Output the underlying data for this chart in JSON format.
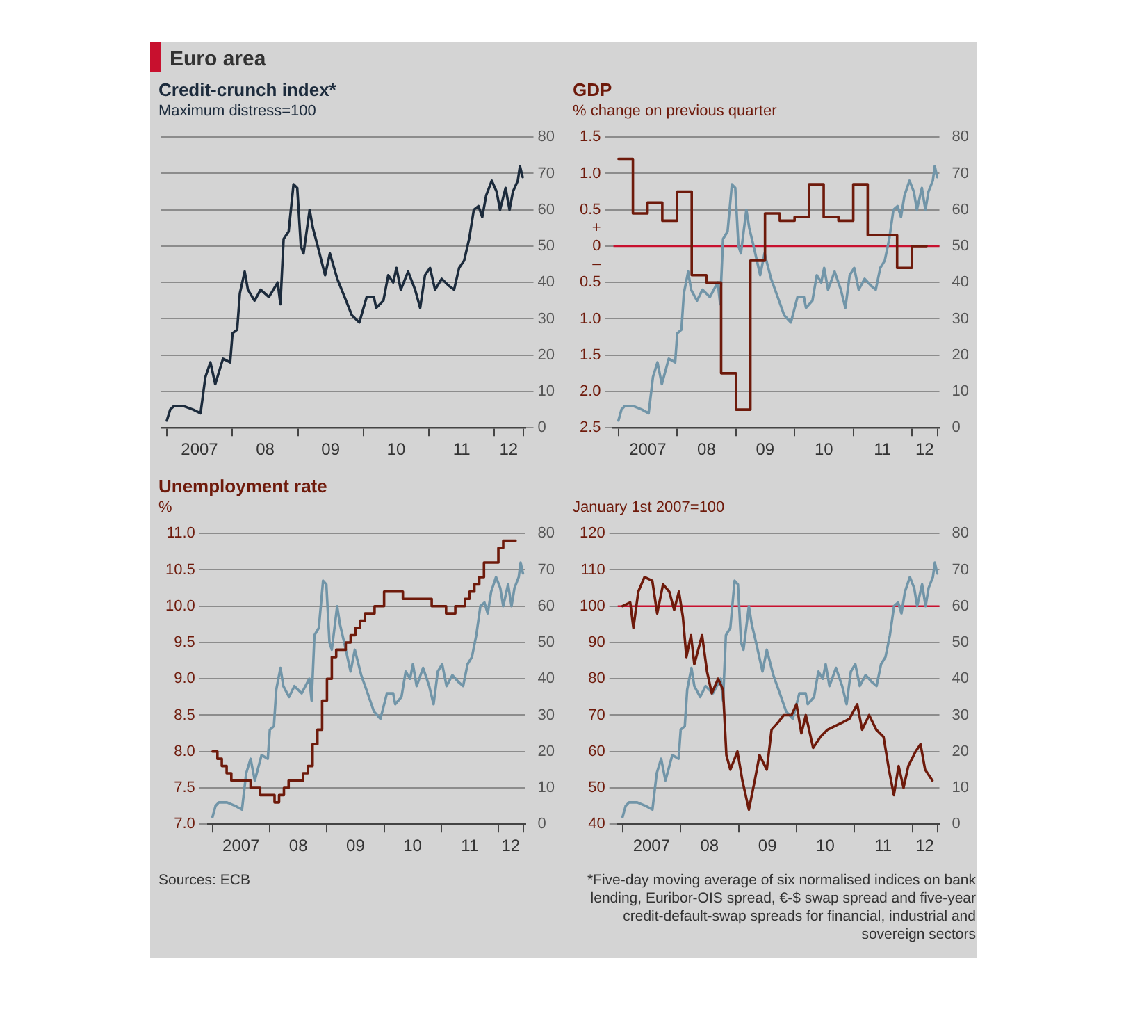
{
  "chart_data": [
    {
      "type": "line",
      "title": "Credit-crunch index*",
      "subtitle": "Maximum distress=100",
      "annotations": [
        "Euro area"
      ],
      "xlim": [
        "2006-12-01",
        "2012-06-20"
      ],
      "xticks": [
        {
          "value": "2007-01-01",
          "label": null
        },
        {
          "value": "2007-07-02",
          "label": "2007"
        },
        {
          "value": "2008-01-01",
          "label": null
        },
        {
          "value": "2008-07-02",
          "label": "08"
        },
        {
          "value": "2009-01-01",
          "label": null
        },
        {
          "value": "2009-07-02",
          "label": "09"
        },
        {
          "value": "2010-01-01",
          "label": null
        },
        {
          "value": "2010-07-02",
          "label": "10"
        },
        {
          "value": "2011-01-01",
          "label": null
        },
        {
          "value": "2011-07-02",
          "label": "11"
        },
        {
          "value": "2012-01-01",
          "label": null
        },
        {
          "value": "2012-03-20",
          "label": "12"
        },
        {
          "value": "2012-06-10",
          "label": null
        }
      ],
      "y2lim": [
        0,
        80
      ],
      "y2ticks": [
        0,
        10,
        20,
        30,
        40,
        50,
        60,
        70,
        80
      ],
      "grid": "y",
      "series": [
        {
          "color": "#1c2b3c",
          "axis": "y2",
          "x": [
            "2007-01-01",
            "2007-01-20",
            "2007-02-10",
            "2007-04-03",
            "2007-05-28",
            "2007-07-08",
            "2007-08-04",
            "2007-09-01",
            "2007-09-28",
            "2007-11-10",
            "2007-12-20",
            "2008-01-02",
            "2008-01-28",
            "2008-02-12",
            "2008-03-10",
            "2008-03-28",
            "2008-05-04",
            "2008-06-07",
            "2008-07-23",
            "2008-09-10",
            "2008-09-25",
            "2008-10-13",
            "2008-11-10",
            "2008-12-07",
            "2008-12-28",
            "2009-01-17",
            "2009-02-01",
            "2009-03-07",
            "2009-03-25",
            "2009-04-21",
            "2009-06-01",
            "2009-06-28",
            "2009-08-08",
            "2009-09-18",
            "2009-10-28",
            "2009-12-09",
            "2010-01-19",
            "2010-02-28",
            "2010-03-13",
            "2010-04-22",
            "2010-05-19",
            "2010-06-16",
            "2010-07-04",
            "2010-07-28",
            "2010-09-07",
            "2010-10-16",
            "2010-11-13",
            "2010-12-10",
            "2011-01-07",
            "2011-02-04",
            "2011-03-13",
            "2011-04-24",
            "2011-05-21",
            "2011-06-18",
            "2011-07-16",
            "2011-08-13",
            "2011-09-08",
            "2011-10-04",
            "2011-10-25",
            "2011-11-16",
            "2011-12-17",
            "2012-01-13",
            "2012-02-01",
            "2012-03-03",
            "2012-03-25",
            "2012-04-13",
            "2012-05-10",
            "2012-05-22",
            "2012-06-06"
          ],
          "values": [
            2,
            5,
            6,
            6,
            5,
            4,
            14,
            18,
            12,
            19,
            18,
            26,
            27,
            37,
            43,
            38,
            35,
            38,
            36,
            40,
            34,
            52,
            54,
            67,
            66,
            50,
            48,
            60,
            55,
            50,
            42,
            48,
            41,
            36,
            31,
            29,
            36,
            36,
            33,
            35,
            42,
            40,
            44,
            38,
            43,
            38,
            33,
            42,
            44,
            38,
            41,
            39,
            38,
            44,
            46,
            52,
            60,
            61,
            58,
            64,
            68,
            65,
            60,
            66,
            60,
            65,
            68,
            72,
            69
          ]
        }
      ]
    },
    {
      "type": "line",
      "title": "GDP",
      "subtitle": "% change on previous quarter",
      "xlim": [
        "2006-12-01",
        "2012-06-20"
      ],
      "xticks": [
        {
          "value": "2007-01-01",
          "label": null
        },
        {
          "value": "2007-07-02",
          "label": "2007"
        },
        {
          "value": "2008-01-01",
          "label": null
        },
        {
          "value": "2008-07-02",
          "label": "08"
        },
        {
          "value": "2009-01-01",
          "label": null
        },
        {
          "value": "2009-07-02",
          "label": "09"
        },
        {
          "value": "2010-01-01",
          "label": null
        },
        {
          "value": "2010-07-02",
          "label": "10"
        },
        {
          "value": "2011-01-01",
          "label": null
        },
        {
          "value": "2011-07-02",
          "label": "11"
        },
        {
          "value": "2012-01-01",
          "label": null
        },
        {
          "value": "2012-03-20",
          "label": "12"
        },
        {
          "value": "2012-06-10",
          "label": null
        }
      ],
      "ylim": [
        -2.5,
        1.5
      ],
      "yticks": [
        1.5,
        {
          "value": 1,
          "label": "1.0"
        },
        0.5,
        {
          "value": 0.25,
          "label": "+"
        },
        0,
        {
          "value": -0.25,
          "label": "–"
        },
        {
          "value": -0.5,
          "label": "0.5"
        },
        {
          "value": -1,
          "label": "1.0"
        },
        {
          "value": -1.5,
          "label": "1.5"
        },
        {
          "value": -2,
          "label": "2.0"
        },
        {
          "value": -2.5,
          "label": "2.5"
        }
      ],
      "y2lim": [
        0,
        80
      ],
      "y2ticks": [
        0,
        10,
        20,
        30,
        40,
        50,
        60,
        70,
        80
      ],
      "grid": "y",
      "ref_lines": [
        {
          "axis": "y",
          "value": 0,
          "color": "#c8102e"
        }
      ],
      "series": [
        {
          "type": "step",
          "color": "#6e1a0b",
          "x": [
            "2007-01-01",
            "2007-04-01",
            "2007-07-01",
            "2007-10-01",
            "2008-01-01",
            "2008-04-01",
            "2008-07-01",
            "2008-10-01",
            "2009-01-01",
            "2009-04-01",
            "2009-07-01",
            "2009-10-01",
            "2010-01-01",
            "2010-04-01",
            "2010-07-01",
            "2010-10-01",
            "2011-01-01",
            "2011-04-01",
            "2011-07-01",
            "2011-10-01",
            "2012-01-01",
            "2012-04-01"
          ],
          "values": [
            1.2,
            0.45,
            0.6,
            0.35,
            0.75,
            -0.4,
            -0.5,
            -1.75,
            -2.25,
            -0.2,
            0.45,
            0.35,
            0.4,
            0.85,
            0.4,
            0.35,
            0.85,
            0.15,
            0.15,
            -0.3,
            0,
            0
          ]
        },
        {
          "color": "#7195a8",
          "axis": "y2",
          "x": [
            "2007-01-01",
            "2007-01-20",
            "2007-02-10",
            "2007-04-03",
            "2007-05-28",
            "2007-07-08",
            "2007-08-04",
            "2007-09-01",
            "2007-09-28",
            "2007-11-10",
            "2007-12-20",
            "2008-01-02",
            "2008-01-28",
            "2008-02-12",
            "2008-03-10",
            "2008-03-28",
            "2008-05-04",
            "2008-06-07",
            "2008-07-23",
            "2008-09-10",
            "2008-09-25",
            "2008-10-13",
            "2008-11-10",
            "2008-12-07",
            "2008-12-28",
            "2009-01-17",
            "2009-02-01",
            "2009-03-07",
            "2009-03-25",
            "2009-04-21",
            "2009-06-01",
            "2009-06-28",
            "2009-08-08",
            "2009-09-18",
            "2009-10-28",
            "2009-12-09",
            "2010-01-19",
            "2010-02-28",
            "2010-03-13",
            "2010-04-22",
            "2010-05-19",
            "2010-06-16",
            "2010-07-04",
            "2010-07-28",
            "2010-09-07",
            "2010-10-16",
            "2010-11-13",
            "2010-12-10",
            "2011-01-07",
            "2011-02-04",
            "2011-03-13",
            "2011-04-24",
            "2011-05-21",
            "2011-06-18",
            "2011-07-16",
            "2011-08-13",
            "2011-09-08",
            "2011-10-04",
            "2011-10-25",
            "2011-11-16",
            "2011-12-17",
            "2012-01-13",
            "2012-02-01",
            "2012-03-03",
            "2012-03-25",
            "2012-04-13",
            "2012-05-10",
            "2012-05-22",
            "2012-06-06"
          ],
          "values": [
            2,
            5,
            6,
            6,
            5,
            4,
            14,
            18,
            12,
            19,
            18,
            26,
            27,
            37,
            43,
            38,
            35,
            38,
            36,
            40,
            34,
            52,
            54,
            67,
            66,
            50,
            48,
            60,
            55,
            50,
            42,
            48,
            41,
            36,
            31,
            29,
            36,
            36,
            33,
            35,
            42,
            40,
            44,
            38,
            43,
            38,
            33,
            42,
            44,
            38,
            41,
            39,
            38,
            44,
            46,
            52,
            60,
            61,
            58,
            64,
            68,
            65,
            60,
            66,
            60,
            65,
            68,
            72,
            69
          ]
        }
      ]
    },
    {
      "type": "line",
      "title": "Unemployment rate",
      "subtitle": "%",
      "annotations": [
        "Sources: ECB"
      ],
      "xlim": [
        "2006-12-01",
        "2012-06-20"
      ],
      "xticks": [
        {
          "value": "2007-01-01",
          "label": null
        },
        {
          "value": "2007-07-02",
          "label": "2007"
        },
        {
          "value": "2008-01-01",
          "label": null
        },
        {
          "value": "2008-07-02",
          "label": "08"
        },
        {
          "value": "2009-01-01",
          "label": null
        },
        {
          "value": "2009-07-02",
          "label": "09"
        },
        {
          "value": "2010-01-01",
          "label": null
        },
        {
          "value": "2010-07-02",
          "label": "10"
        },
        {
          "value": "2011-01-01",
          "label": null
        },
        {
          "value": "2011-07-02",
          "label": "11"
        },
        {
          "value": "2012-01-01",
          "label": null
        },
        {
          "value": "2012-03-20",
          "label": "12"
        },
        {
          "value": "2012-06-10",
          "label": null
        }
      ],
      "ylim": [
        7,
        11
      ],
      "yticks": [
        {
          "value": 7,
          "label": "7.0"
        },
        7.5,
        {
          "value": 8,
          "label": "8.0"
        },
        8.5,
        {
          "value": 9,
          "label": "9.0"
        },
        9.5,
        {
          "value": 10,
          "label": "10.0"
        },
        10.5,
        {
          "value": 11,
          "label": "11.0"
        }
      ],
      "y2lim": [
        0,
        80
      ],
      "y2ticks": [
        0,
        10,
        20,
        30,
        40,
        50,
        60,
        70,
        80
      ],
      "grid": "y",
      "series": [
        {
          "type": "step",
          "color": "#6e1a0b",
          "x": [
            "2007-01-01",
            "2007-02-01",
            "2007-03-01",
            "2007-04-01",
            "2007-05-01",
            "2007-09-01",
            "2007-11-01",
            "2008-02-01",
            "2008-03-01",
            "2008-04-01",
            "2008-05-01",
            "2008-08-01",
            "2008-09-01",
            "2008-10-01",
            "2008-11-01",
            "2008-12-01",
            "2009-01-01",
            "2009-02-01",
            "2009-03-01",
            "2009-05-01",
            "2009-06-01",
            "2009-07-01",
            "2009-08-01",
            "2009-09-01",
            "2009-11-01",
            "2010-01-01",
            "2010-05-01",
            "2010-11-01",
            "2011-02-01",
            "2011-04-01",
            "2011-06-01",
            "2011-07-01",
            "2011-08-01",
            "2011-09-01",
            "2011-10-01",
            "2012-01-01",
            "2012-02-01",
            "2012-04-20"
          ],
          "values": [
            8.0,
            7.9,
            7.8,
            7.7,
            7.6,
            7.5,
            7.4,
            7.3,
            7.4,
            7.5,
            7.6,
            7.7,
            7.8,
            8.1,
            8.3,
            8.7,
            9.0,
            9.3,
            9.4,
            9.5,
            9.6,
            9.7,
            9.8,
            9.9,
            10.0,
            10.2,
            10.1,
            10.0,
            9.9,
            10.0,
            10.1,
            10.2,
            10.3,
            10.4,
            10.6,
            10.8,
            10.9,
            10.9
          ]
        },
        {
          "color": "#7195a8",
          "axis": "y2",
          "x": [
            "2007-01-01",
            "2007-01-20",
            "2007-02-10",
            "2007-04-03",
            "2007-05-28",
            "2007-07-08",
            "2007-08-04",
            "2007-09-01",
            "2007-09-28",
            "2007-11-10",
            "2007-12-20",
            "2008-01-02",
            "2008-01-28",
            "2008-02-12",
            "2008-03-10",
            "2008-03-28",
            "2008-05-04",
            "2008-06-07",
            "2008-07-23",
            "2008-09-10",
            "2008-09-25",
            "2008-10-13",
            "2008-11-10",
            "2008-12-07",
            "2008-12-28",
            "2009-01-17",
            "2009-02-01",
            "2009-03-07",
            "2009-03-25",
            "2009-04-21",
            "2009-06-01",
            "2009-06-28",
            "2009-08-08",
            "2009-09-18",
            "2009-10-28",
            "2009-12-09",
            "2010-01-19",
            "2010-02-28",
            "2010-03-13",
            "2010-04-22",
            "2010-05-19",
            "2010-06-16",
            "2010-07-04",
            "2010-07-28",
            "2010-09-07",
            "2010-10-16",
            "2010-11-13",
            "2010-12-10",
            "2011-01-07",
            "2011-02-04",
            "2011-03-13",
            "2011-04-24",
            "2011-05-21",
            "2011-06-18",
            "2011-07-16",
            "2011-08-13",
            "2011-09-08",
            "2011-10-04",
            "2011-10-25",
            "2011-11-16",
            "2011-12-17",
            "2012-01-13",
            "2012-02-01",
            "2012-03-03",
            "2012-03-25",
            "2012-04-13",
            "2012-05-10",
            "2012-05-22",
            "2012-06-06"
          ],
          "values": [
            2,
            5,
            6,
            6,
            5,
            4,
            14,
            18,
            12,
            19,
            18,
            26,
            27,
            37,
            43,
            38,
            35,
            38,
            36,
            40,
            34,
            52,
            54,
            67,
            66,
            50,
            48,
            60,
            55,
            50,
            42,
            48,
            41,
            36,
            31,
            29,
            36,
            36,
            33,
            35,
            42,
            40,
            44,
            38,
            43,
            38,
            33,
            42,
            44,
            38,
            41,
            39,
            38,
            44,
            46,
            52,
            60,
            61,
            58,
            64,
            68,
            65,
            60,
            66,
            60,
            65,
            68,
            72,
            69
          ]
        }
      ]
    },
    {
      "type": "line",
      "subtitle": "January 1st 2007=100",
      "annotations": [
        "*Five-day moving average of six normalised indices on bank lending, Euribor-OIS spread, €-$ swap spread and five-year credit-default-swap spreads for financial, industrial and sovereign sectors"
      ],
      "xlim": [
        "2006-12-01",
        "2012-06-20"
      ],
      "xticks": [
        {
          "value": "2007-01-01",
          "label": null
        },
        {
          "value": "2007-07-02",
          "label": "2007"
        },
        {
          "value": "2008-01-01",
          "label": null
        },
        {
          "value": "2008-07-02",
          "label": "08"
        },
        {
          "value": "2009-01-01",
          "label": null
        },
        {
          "value": "2009-07-02",
          "label": "09"
        },
        {
          "value": "2010-01-01",
          "label": null
        },
        {
          "value": "2010-07-02",
          "label": "10"
        },
        {
          "value": "2011-01-01",
          "label": null
        },
        {
          "value": "2011-07-02",
          "label": "11"
        },
        {
          "value": "2012-01-01",
          "label": null
        },
        {
          "value": "2012-03-20",
          "label": "12"
        },
        {
          "value": "2012-06-10",
          "label": null
        }
      ],
      "ylim": [
        40,
        120
      ],
      "yticks": [
        40,
        50,
        60,
        70,
        80,
        90,
        100,
        110,
        120
      ],
      "y2lim": [
        0,
        80
      ],
      "y2ticks": [
        0,
        10,
        20,
        30,
        40,
        50,
        60,
        70,
        80
      ],
      "grid": "y",
      "ref_lines": [
        {
          "axis": "y",
          "value": 100,
          "color": "#c8102e"
        }
      ],
      "series": [
        {
          "color": "#6e1a0b",
          "x": [
            "2007-01-01",
            "2007-02-18",
            "2007-03-10",
            "2007-04-10",
            "2007-05-19",
            "2007-07-07",
            "2007-08-07",
            "2007-09-13",
            "2007-10-22",
            "2007-11-22",
            "2007-12-22",
            "2008-01-16",
            "2008-02-07",
            "2008-03-07",
            "2008-03-28",
            "2008-05-16",
            "2008-06-16",
            "2008-07-16",
            "2008-08-25",
            "2008-09-25",
            "2008-10-16",
            "2008-11-10",
            "2008-12-25",
            "2009-01-25",
            "2009-03-07",
            "2009-04-13",
            "2009-05-13",
            "2009-06-28",
            "2009-07-28",
            "2009-09-07",
            "2009-10-13",
            "2009-12-01",
            "2010-01-01",
            "2010-02-01",
            "2010-03-01",
            "2010-04-16",
            "2010-06-01",
            "2010-07-16",
            "2010-09-01",
            "2010-10-19",
            "2010-12-01",
            "2011-01-19",
            "2011-02-19",
            "2011-04-04",
            "2011-05-19",
            "2011-07-04",
            "2011-08-07",
            "2011-09-07",
            "2011-10-07",
            "2011-11-07",
            "2011-12-07",
            "2012-01-22",
            "2012-02-22",
            "2012-03-22",
            "2012-05-07"
          ],
          "values": [
            100,
            101,
            94,
            104,
            108,
            107,
            98,
            106,
            104,
            99,
            104,
            97,
            86,
            92,
            84,
            92,
            82,
            76,
            80,
            77,
            59,
            55,
            60,
            52,
            44,
            52,
            59,
            55,
            66,
            68,
            70,
            70,
            73,
            65,
            70,
            61,
            64,
            66,
            67,
            68,
            69,
            73,
            66,
            70,
            66,
            64,
            55,
            48,
            56,
            50,
            56,
            60,
            62,
            55,
            52
          ]
        },
        {
          "color": "#7195a8",
          "axis": "y2",
          "x": [
            "2007-01-01",
            "2007-01-20",
            "2007-02-10",
            "2007-04-03",
            "2007-05-28",
            "2007-07-08",
            "2007-08-04",
            "2007-09-01",
            "2007-09-28",
            "2007-11-10",
            "2007-12-20",
            "2008-01-02",
            "2008-01-28",
            "2008-02-12",
            "2008-03-10",
            "2008-03-28",
            "2008-05-04",
            "2008-06-07",
            "2008-07-23",
            "2008-09-10",
            "2008-09-25",
            "2008-10-13",
            "2008-11-10",
            "2008-12-07",
            "2008-12-28",
            "2009-01-17",
            "2009-02-01",
            "2009-03-07",
            "2009-03-25",
            "2009-04-21",
            "2009-06-01",
            "2009-06-28",
            "2009-08-08",
            "2009-09-18",
            "2009-10-28",
            "2009-12-09",
            "2010-01-19",
            "2010-02-28",
            "2010-03-13",
            "2010-04-22",
            "2010-05-19",
            "2010-06-16",
            "2010-07-04",
            "2010-07-28",
            "2010-09-07",
            "2010-10-16",
            "2010-11-13",
            "2010-12-10",
            "2011-01-07",
            "2011-02-04",
            "2011-03-13",
            "2011-04-24",
            "2011-05-21",
            "2011-06-18",
            "2011-07-16",
            "2011-08-13",
            "2011-09-08",
            "2011-10-04",
            "2011-10-25",
            "2011-11-16",
            "2011-12-17",
            "2012-01-13",
            "2012-02-01",
            "2012-03-03",
            "2012-03-25",
            "2012-04-13",
            "2012-05-10",
            "2012-05-22",
            "2012-06-06"
          ],
          "values": [
            2,
            5,
            6,
            6,
            5,
            4,
            14,
            18,
            12,
            19,
            18,
            26,
            27,
            37,
            43,
            38,
            35,
            38,
            36,
            40,
            34,
            52,
            54,
            67,
            66,
            50,
            48,
            60,
            55,
            50,
            42,
            48,
            41,
            36,
            31,
            29,
            36,
            36,
            33,
            35,
            42,
            40,
            44,
            38,
            43,
            38,
            33,
            42,
            44,
            38,
            41,
            39,
            38,
            44,
            46,
            52,
            60,
            61,
            58,
            64,
            68,
            65,
            60,
            66,
            60,
            65,
            68,
            72,
            69
          ]
        }
      ]
    }
  ]
}
